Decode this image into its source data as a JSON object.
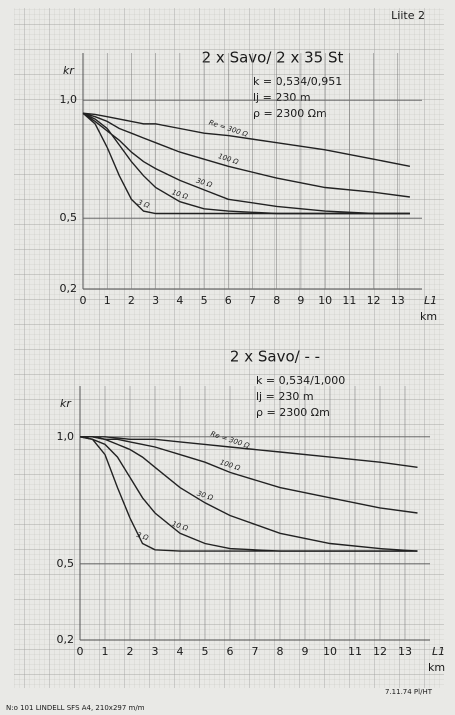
{
  "header": {
    "page_label": "Liite 2"
  },
  "chart_data": [
    {
      "type": "line",
      "title": "2 x Savo/ 2 x 35 St",
      "annotations": [
        "k = 0,534/0,951",
        "lj = 230 m",
        "ρ = 2300 Ωm"
      ],
      "y_label": "kr",
      "x_label": "L1",
      "x_unit": "km",
      "x": [
        0,
        0.5,
        1,
        1.5,
        2,
        2.5,
        3,
        4,
        5,
        6,
        8,
        10,
        12,
        13.5
      ],
      "series": [
        {
          "name": "Re = 300 Ω",
          "color": "#222222",
          "values": [
            0.945,
            0.94,
            0.93,
            0.92,
            0.91,
            0.9,
            0.9,
            0.88,
            0.86,
            0.85,
            0.82,
            0.79,
            0.75,
            0.72
          ]
        },
        {
          "name": "100 Ω",
          "color": "#222222",
          "values": [
            0.945,
            0.93,
            0.91,
            0.88,
            0.86,
            0.84,
            0.82,
            0.78,
            0.75,
            0.72,
            0.67,
            0.63,
            0.61,
            0.59
          ]
        },
        {
          "name": "30 Ω",
          "color": "#222222",
          "values": [
            0.945,
            0.91,
            0.87,
            0.83,
            0.78,
            0.74,
            0.71,
            0.66,
            0.62,
            0.58,
            0.55,
            0.53,
            0.52,
            0.52
          ]
        },
        {
          "name": "10 Ω",
          "color": "#222222",
          "values": [
            0.945,
            0.92,
            0.88,
            0.81,
            0.74,
            0.68,
            0.63,
            0.57,
            0.54,
            0.53,
            0.52,
            0.52,
            0.52,
            0.52
          ]
        },
        {
          "name": "3 Ω",
          "color": "#222222",
          "values": [
            0.945,
            0.9,
            0.8,
            0.68,
            0.58,
            0.53,
            0.52,
            0.52,
            0.52,
            0.52,
            0.52,
            0.52,
            0.52,
            0.52
          ]
        }
      ],
      "xlim": [
        0,
        14
      ],
      "xticks": [
        0,
        1,
        2,
        3,
        4,
        5,
        6,
        7,
        8,
        9,
        10,
        11,
        12,
        13
      ],
      "ylim": [
        0.2,
        1.2
      ],
      "yticks": [
        {
          "value": 0.2,
          "label": "0,2"
        },
        {
          "value": 0.5,
          "label": "0,5"
        },
        {
          "value": 1.0,
          "label": "1,0"
        }
      ],
      "grid": true
    },
    {
      "type": "line",
      "title": "2 x Savo/ - -",
      "annotations": [
        "k = 0,534/1,000",
        "lj = 230 m",
        "ρ = 2300 Ωm"
      ],
      "y_label": "kr",
      "x_label": "L1",
      "x_unit": "km",
      "x": [
        0,
        0.5,
        1,
        1.5,
        2,
        2.5,
        3,
        4,
        5,
        6,
        8,
        10,
        12,
        13.5
      ],
      "series": [
        {
          "name": "Re = 300 Ω",
          "color": "#222222",
          "values": [
            1,
            1,
            1,
            0.995,
            0.99,
            0.99,
            0.99,
            0.98,
            0.97,
            0.96,
            0.94,
            0.92,
            0.9,
            0.88
          ]
        },
        {
          "name": "100 Ω",
          "color": "#222222",
          "values": [
            1,
            1,
            0.99,
            0.99,
            0.98,
            0.97,
            0.96,
            0.93,
            0.9,
            0.86,
            0.8,
            0.76,
            0.72,
            0.7
          ]
        },
        {
          "name": "30 Ω",
          "color": "#222222",
          "values": [
            1,
            1,
            0.99,
            0.97,
            0.95,
            0.92,
            0.88,
            0.8,
            0.74,
            0.69,
            0.62,
            0.58,
            0.56,
            0.55
          ]
        },
        {
          "name": "10 Ω",
          "color": "#222222",
          "values": [
            1,
            0.99,
            0.97,
            0.92,
            0.84,
            0.76,
            0.7,
            0.62,
            0.58,
            0.56,
            0.55,
            0.55,
            0.55,
            0.55
          ]
        },
        {
          "name": "3 Ω",
          "color": "#222222",
          "values": [
            1,
            0.99,
            0.93,
            0.8,
            0.68,
            0.58,
            0.555,
            0.55,
            0.55,
            0.55,
            0.55,
            0.55,
            0.55,
            0.55
          ]
        }
      ],
      "xlim": [
        0,
        14
      ],
      "xticks": [
        0,
        1,
        2,
        3,
        4,
        5,
        6,
        7,
        8,
        9,
        10,
        11,
        12,
        13
      ],
      "ylim": [
        0.2,
        1.2
      ],
      "yticks": [
        {
          "value": 0.2,
          "label": "0,2"
        },
        {
          "value": 0.5,
          "label": "0,5"
        },
        {
          "value": 1.0,
          "label": "1,0"
        }
      ],
      "grid": true
    }
  ],
  "footer": {
    "left": "N:o 101 LINDELL SFS A4, 210x297 m/m",
    "right": "7.11.74 Pl/HT"
  }
}
